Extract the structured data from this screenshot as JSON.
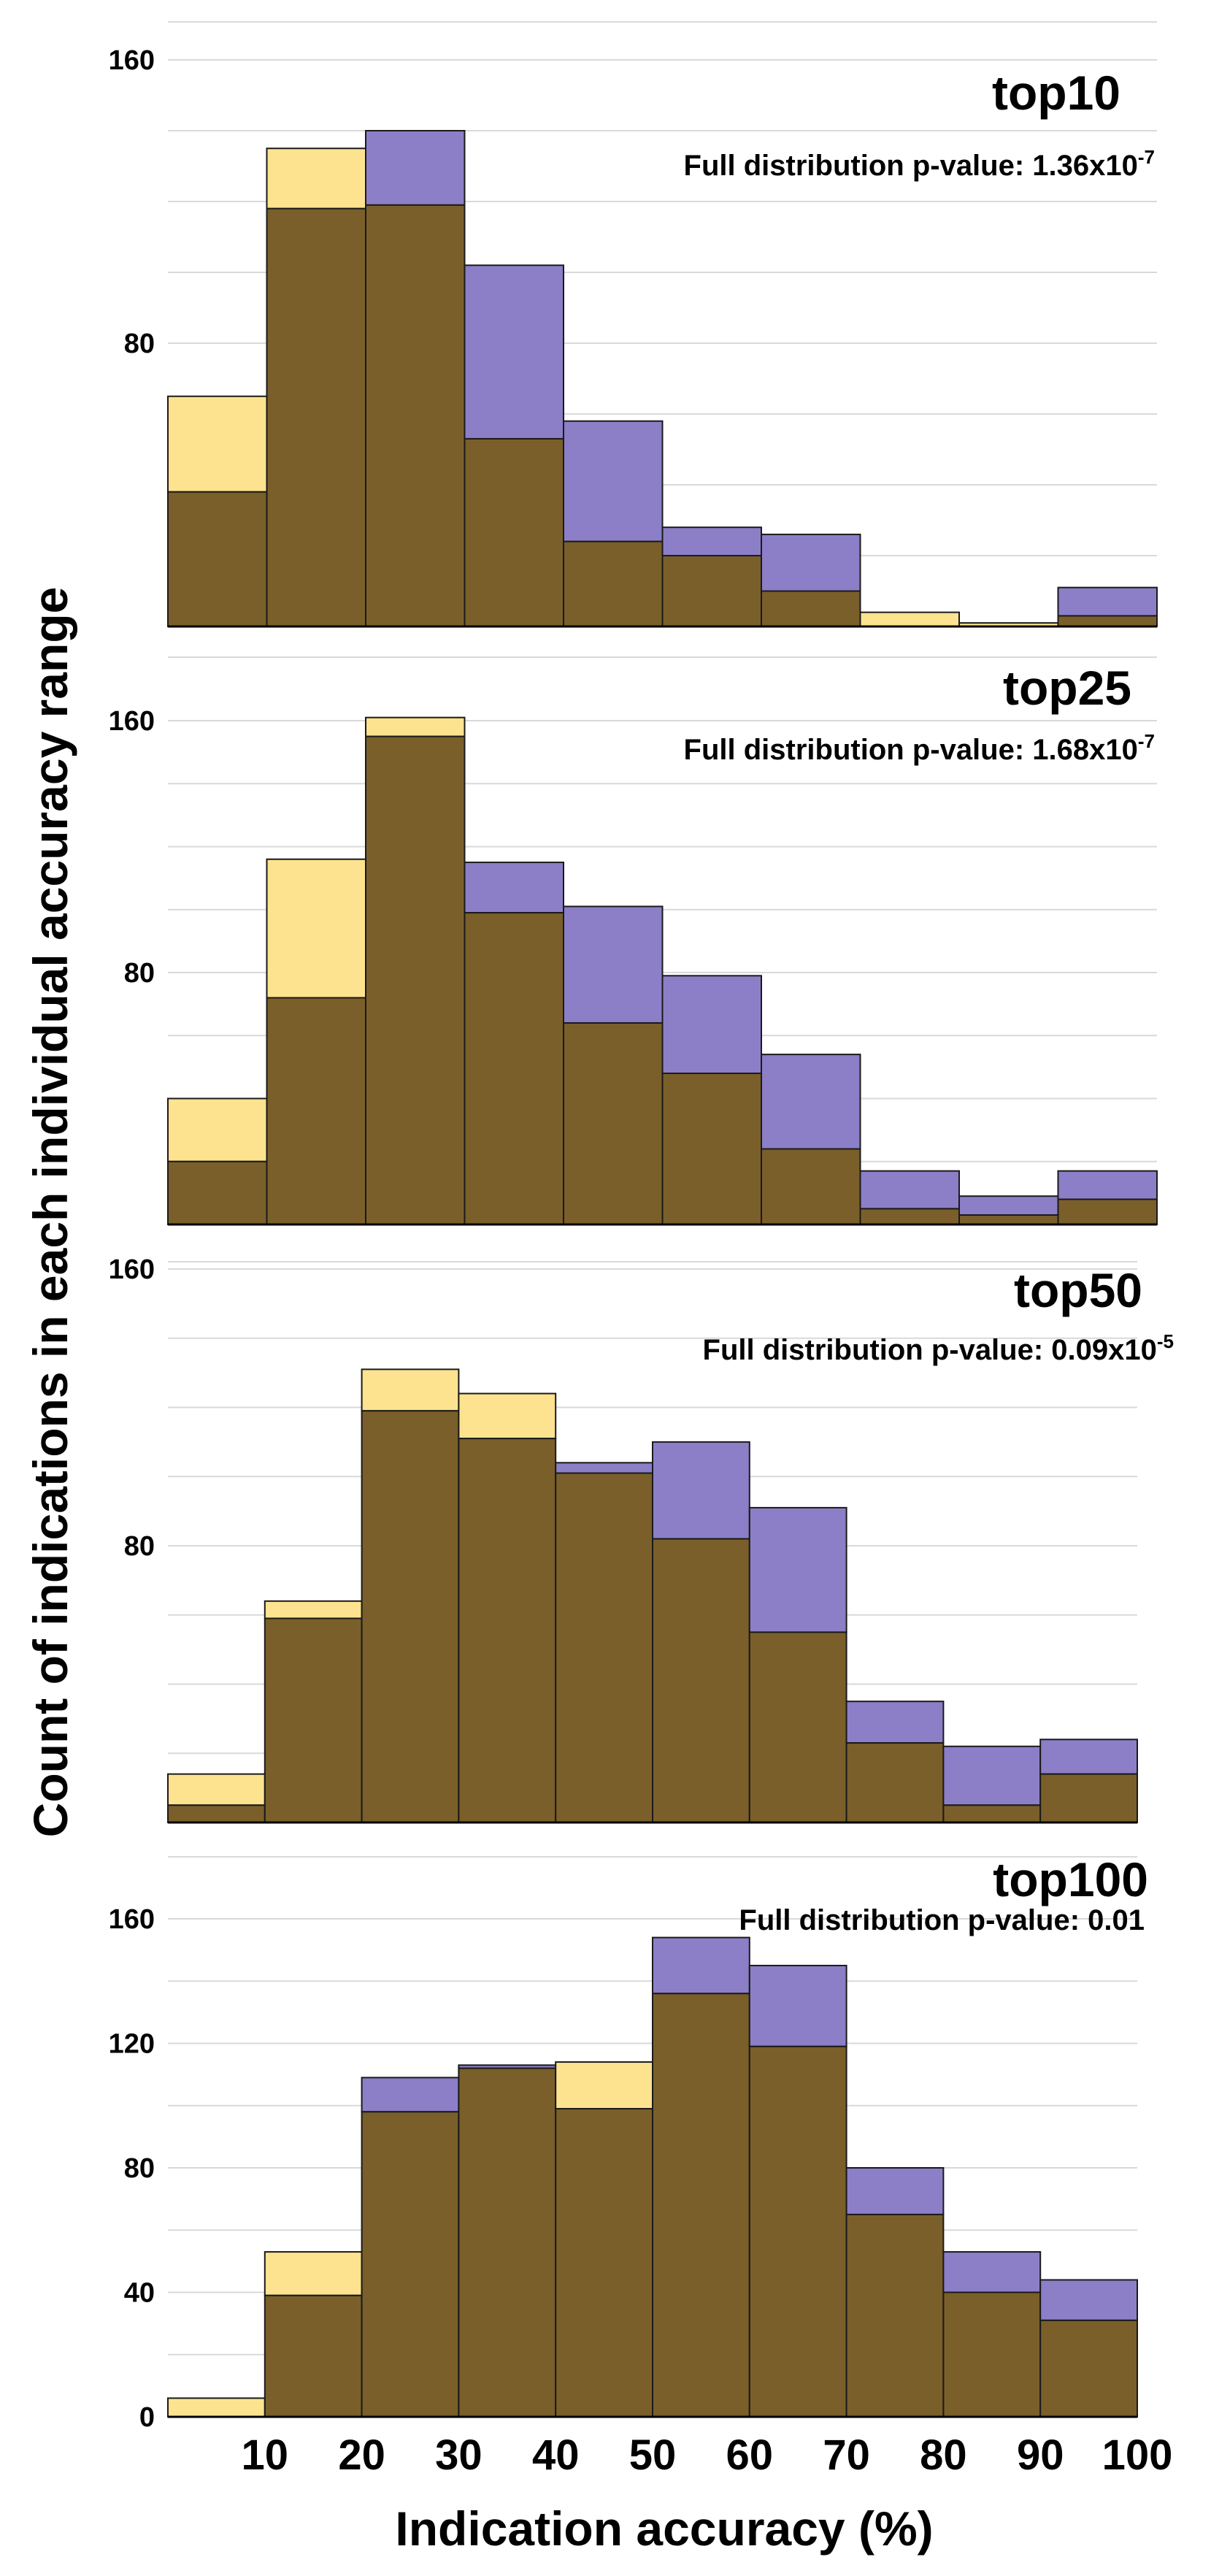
{
  "figure": {
    "ylabel": "Count of indications in each individual accuracy range",
    "xlabel": "Indication accuracy (%)",
    "xticks": [
      "10",
      "20",
      "30",
      "40",
      "50",
      "60",
      "70",
      "80",
      "90",
      "100"
    ],
    "colors": {
      "yellow": "#fde38f",
      "purple": "#8c7fc8",
      "overlap": "#7a5f2a",
      "edge": "#1a1a1a"
    }
  },
  "chart_data": [
    {
      "type": "bar",
      "title": "top10",
      "pvalue_prefix": "Full distribution p-value: 1.36x10",
      "pvalue_exp": "-7",
      "categories": [
        "0-10",
        "10-20",
        "20-30",
        "30-40",
        "40-50",
        "50-60",
        "60-70",
        "70-80",
        "80-90",
        "90-100"
      ],
      "series": [
        {
          "name": "yellow",
          "values": [
            65,
            135,
            119,
            53,
            24,
            20,
            10,
            4,
            1,
            3
          ]
        },
        {
          "name": "purple",
          "values": [
            38,
            118,
            140,
            102,
            58,
            28,
            26,
            0,
            0,
            11
          ]
        }
      ],
      "ylim": [
        0,
        160
      ],
      "yticks": [
        80,
        160
      ]
    },
    {
      "type": "bar",
      "title": "top25",
      "pvalue_prefix": "Full distribution p-value: 1.68x10",
      "pvalue_exp": "-7",
      "categories": [
        "0-10",
        "10-20",
        "20-30",
        "30-40",
        "40-50",
        "50-60",
        "60-70",
        "70-80",
        "80-90",
        "90-100"
      ],
      "series": [
        {
          "name": "yellow",
          "values": [
            40,
            116,
            161,
            99,
            64,
            48,
            24,
            5,
            3,
            8
          ]
        },
        {
          "name": "purple",
          "values": [
            20,
            72,
            155,
            115,
            101,
            79,
            54,
            17,
            9,
            17
          ]
        }
      ],
      "ylim": [
        0,
        160
      ],
      "yticks": [
        80,
        160
      ]
    },
    {
      "type": "bar",
      "title": "top50",
      "pvalue_prefix": "Full distribution p-value: 0.09x10",
      "pvalue_exp": "-5",
      "categories": [
        "0-10",
        "10-20",
        "20-30",
        "30-40",
        "40-50",
        "50-60",
        "60-70",
        "70-80",
        "80-90",
        "90-100"
      ],
      "series": [
        {
          "name": "yellow",
          "values": [
            14,
            64,
            131,
            124,
            101,
            82,
            55,
            23,
            5,
            14
          ]
        },
        {
          "name": "purple",
          "values": [
            5,
            59,
            119,
            111,
            104,
            110,
            91,
            35,
            22,
            24
          ]
        }
      ],
      "ylim": [
        0,
        160
      ],
      "yticks": [
        80,
        160
      ]
    },
    {
      "type": "bar",
      "title": "top100",
      "pvalue_prefix": "Full distribution p-value: 0.01",
      "pvalue_exp": "",
      "categories": [
        "0-10",
        "10-20",
        "20-30",
        "30-40",
        "40-50",
        "50-60",
        "60-70",
        "70-80",
        "80-90",
        "90-100"
      ],
      "series": [
        {
          "name": "yellow",
          "values": [
            6,
            53,
            98,
            112,
            114,
            136,
            119,
            65,
            40,
            31
          ]
        },
        {
          "name": "purple",
          "values": [
            0,
            39,
            109,
            113,
            99,
            154,
            145,
            80,
            53,
            44
          ]
        }
      ],
      "ylim": [
        0,
        160
      ],
      "yticks": [
        0,
        40,
        80,
        120,
        160
      ]
    }
  ]
}
